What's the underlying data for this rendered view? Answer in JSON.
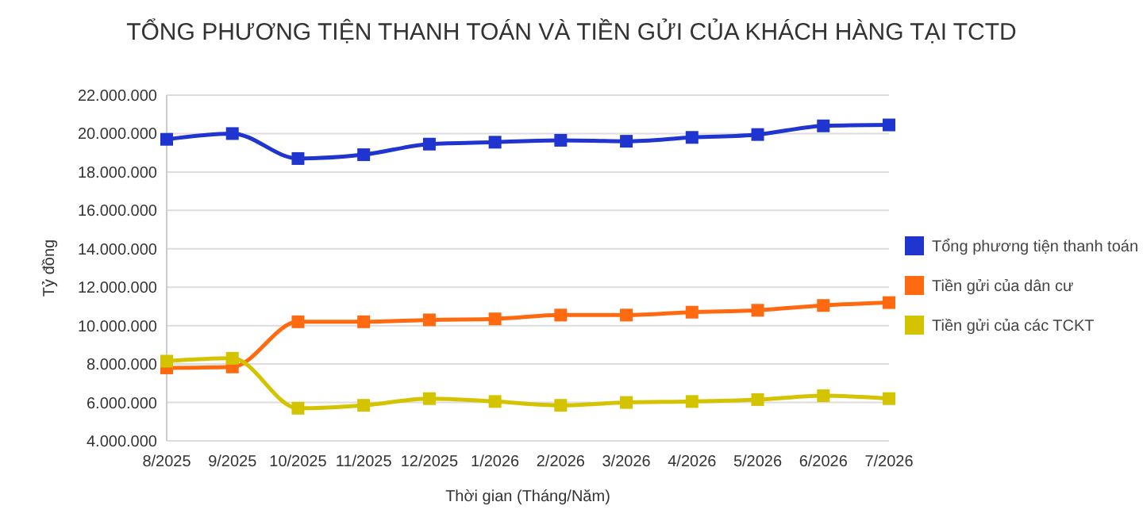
{
  "chart_data": {
    "type": "line",
    "title": "TỔNG PHƯƠNG TIỆN THANH TOÁN VÀ TIỀN GỬI CỦA KHÁCH HÀNG TẠI TCTD",
    "xlabel": "Thời gian (Tháng/Năm)",
    "ylabel": "Tỷ đồng",
    "categories": [
      "8/2025",
      "9/2025",
      "10/2025",
      "11/2025",
      "12/2025",
      "1/2026",
      "2/2026",
      "3/2026",
      "4/2026",
      "5/2026",
      "6/2026",
      "7/2026"
    ],
    "series": [
      {
        "name": "Tổng phương tiện thanh toán",
        "color": "#2035d0",
        "values": [
          19700000,
          20000000,
          18700000,
          18900000,
          19450000,
          19550000,
          19650000,
          19600000,
          19800000,
          19950000,
          20400000,
          20450000
        ]
      },
      {
        "name": "Tiền gửi của dân cư",
        "color": "#ff6a10",
        "values": [
          7800000,
          7850000,
          10200000,
          10200000,
          10300000,
          10350000,
          10550000,
          10550000,
          10700000,
          10800000,
          11050000,
          11200000
        ]
      },
      {
        "name": "Tiền gửi của các TCKT",
        "color": "#d4c400",
        "values": [
          8150000,
          8300000,
          5700000,
          5850000,
          6200000,
          6050000,
          5850000,
          6000000,
          6050000,
          6150000,
          6350000,
          6200000
        ]
      }
    ],
    "ylim": [
      4000000,
      22000000
    ],
    "yticks": [
      {
        "value": 4000000,
        "label": "4.000.000"
      },
      {
        "value": 6000000,
        "label": "6.000.000"
      },
      {
        "value": 8000000,
        "label": "8.000.000"
      },
      {
        "value": 10000000,
        "label": "10.000.000"
      },
      {
        "value": 12000000,
        "label": "12.000.000"
      },
      {
        "value": 14000000,
        "label": "14.000.000"
      },
      {
        "value": 16000000,
        "label": "16.000.000"
      },
      {
        "value": 18000000,
        "label": "18.000.000"
      },
      {
        "value": 20000000,
        "label": "20.000.000"
      },
      {
        "value": 22000000,
        "label": "22.000.000"
      }
    ],
    "grid": "y",
    "legend": "right",
    "marker": "square",
    "line_style": "solid"
  }
}
